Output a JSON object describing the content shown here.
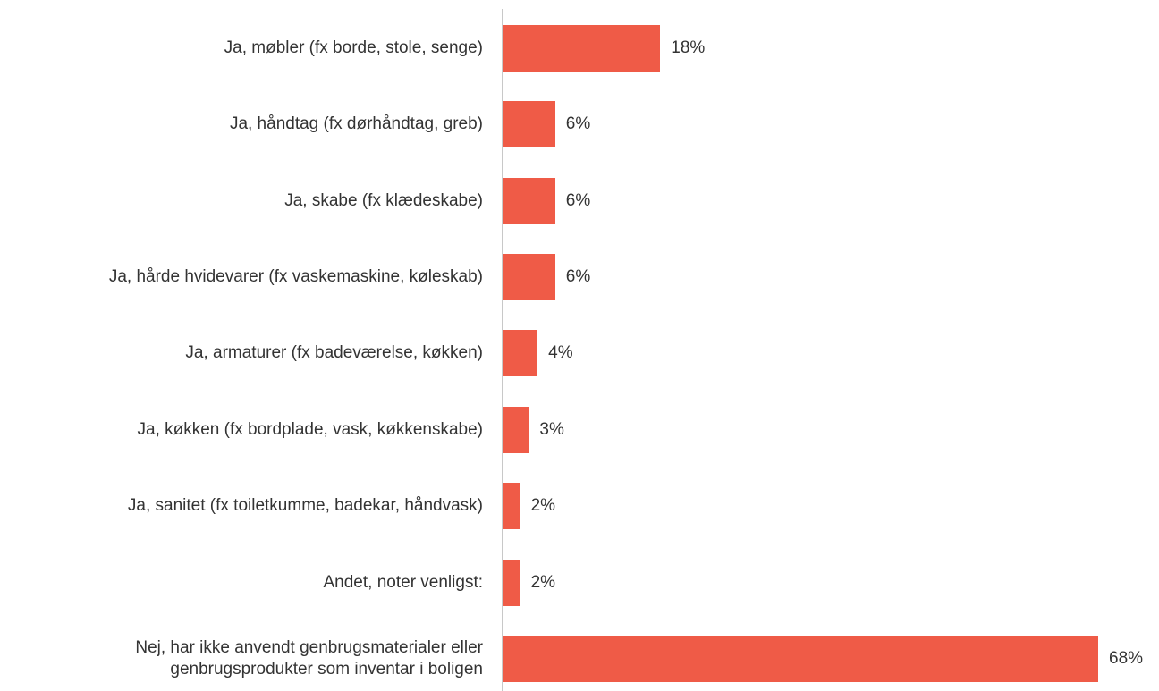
{
  "chart_data": {
    "type": "bar",
    "orientation": "horizontal",
    "categories": [
      "Ja, møbler (fx borde, stole, senge)",
      "Ja, håndtag (fx dørhåndtag, greb)",
      "Ja, skabe (fx klædeskabe)",
      "Ja, hårde hvidevarer (fx vaskemaskine, køleskab)",
      "Ja, armaturer (fx badeværelse, køkken)",
      "Ja, køkken (fx bordplade, vask, køkkenskabe)",
      "Ja, sanitet (fx toiletkumme, badekar, håndvask)",
      "Andet, noter venligst:",
      "Nej, har ikke anvendt genbrugsmaterialer eller genbrugsprodukter som inventar i boligen"
    ],
    "values": [
      18,
      6,
      6,
      6,
      4,
      3,
      2,
      2,
      68
    ],
    "value_labels": [
      "18%",
      "6%",
      "6%",
      "6%",
      "4%",
      "3%",
      "2%",
      "2%",
      "68%"
    ],
    "color": "#ef5b47"
  }
}
